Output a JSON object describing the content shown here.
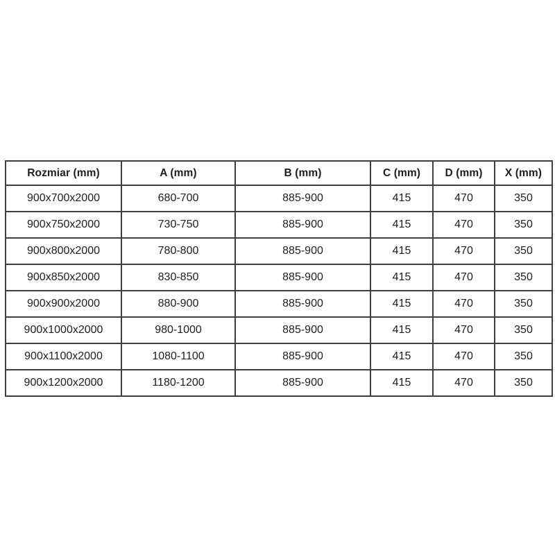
{
  "colors": {
    "page_background": "#ffffff",
    "table_border": "#3d3d3d",
    "text": "#1d1d1d"
  },
  "table": {
    "header": [
      "Rozmiar (mm)",
      "A (mm)",
      "B (mm)",
      "C (mm)",
      "D (mm)",
      "X (mm)"
    ],
    "rows": [
      [
        "900x700x2000",
        "680-700",
        "885-900",
        "415",
        "470",
        "350"
      ],
      [
        "900x750x2000",
        "730-750",
        "885-900",
        "415",
        "470",
        "350"
      ],
      [
        "900x800x2000",
        "780-800",
        "885-900",
        "415",
        "470",
        "350"
      ],
      [
        "900x850x2000",
        "830-850",
        "885-900",
        "415",
        "470",
        "350"
      ],
      [
        "900x900x2000",
        "880-900",
        "885-900",
        "415",
        "470",
        "350"
      ],
      [
        "900x1000x2000",
        "980-1000",
        "885-900",
        "415",
        "470",
        "350"
      ],
      [
        "900x1100x2000",
        "1080-1100",
        "885-900",
        "415",
        "470",
        "350"
      ],
      [
        "900x1200x2000",
        "1180-1200",
        "885-900",
        "415",
        "470",
        "350"
      ]
    ]
  }
}
